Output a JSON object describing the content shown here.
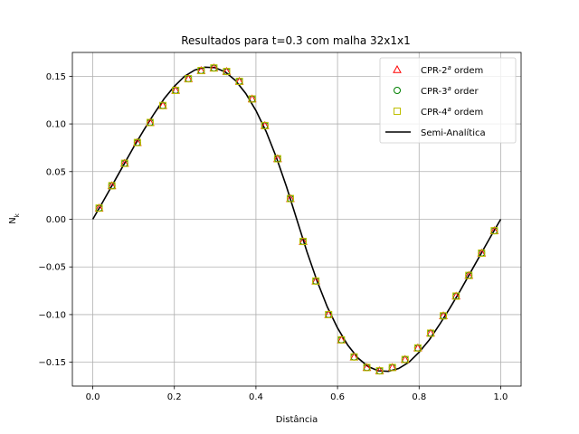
{
  "chart_data": {
    "type": "scatter",
    "title": "Resultados para t=0.3 com malha 32x1x1",
    "xlabel": "Distância",
    "ylabel": "N_k",
    "xlim": [
      -0.05,
      1.05
    ],
    "ylim": [
      -0.175,
      0.175
    ],
    "xticks": [
      0.0,
      0.2,
      0.4,
      0.6,
      0.8,
      1.0
    ],
    "xtick_labels": [
      "0.0",
      "0.2",
      "0.4",
      "0.6",
      "0.8",
      "1.0"
    ],
    "yticks": [
      -0.15,
      -0.1,
      -0.05,
      0.0,
      0.05,
      0.1,
      0.15
    ],
    "ytick_labels": [
      "−0.15",
      "−0.10",
      "−0.05",
      "0.00",
      "0.05",
      "0.10",
      "0.15"
    ],
    "grid": true,
    "legend_position": "top-right",
    "x": [
      0.015625,
      0.046875,
      0.078125,
      0.109375,
      0.140625,
      0.171875,
      0.203125,
      0.234375,
      0.265625,
      0.296875,
      0.328125,
      0.359375,
      0.390625,
      0.421875,
      0.453125,
      0.484375,
      0.515625,
      0.546875,
      0.578125,
      0.609375,
      0.640625,
      0.671875,
      0.703125,
      0.734375,
      0.765625,
      0.796875,
      0.828125,
      0.859375,
      0.890625,
      0.921875,
      0.953125,
      0.984375
    ],
    "series": [
      {
        "name": "CPR-2ª ordem",
        "marker": "triangle",
        "color": "#ff0000",
        "values": [
          0.0117,
          0.0352,
          0.0587,
          0.0805,
          0.1015,
          0.1193,
          0.1352,
          0.1474,
          0.156,
          0.1587,
          0.155,
          0.1447,
          0.1262,
          0.0983,
          0.0635,
          0.0217,
          -0.0233,
          -0.0648,
          -0.1,
          -0.1265,
          -0.1444,
          -0.1555,
          -0.159,
          -0.1555,
          -0.1471,
          -0.135,
          -0.1195,
          -0.1013,
          -0.0806,
          -0.0589,
          -0.0355,
          -0.012
        ]
      },
      {
        "name": "CPR-3ª order",
        "marker": "circle",
        "color": "#008000",
        "values": [
          0.0117,
          0.0352,
          0.0587,
          0.0805,
          0.1015,
          0.1193,
          0.1352,
          0.1474,
          0.156,
          0.1587,
          0.155,
          0.1447,
          0.1262,
          0.0983,
          0.0635,
          0.0217,
          -0.0233,
          -0.0648,
          -0.1,
          -0.1265,
          -0.1444,
          -0.1555,
          -0.159,
          -0.1555,
          -0.1471,
          -0.135,
          -0.1195,
          -0.1013,
          -0.0806,
          -0.0589,
          -0.0355,
          -0.012
        ]
      },
      {
        "name": "CPR-4ª ordem",
        "marker": "square",
        "color": "#bfbf00",
        "values": [
          0.0117,
          0.0352,
          0.0587,
          0.0805,
          0.1015,
          0.1193,
          0.1352,
          0.1474,
          0.156,
          0.1587,
          0.155,
          0.1447,
          0.1262,
          0.0983,
          0.0635,
          0.0217,
          -0.0233,
          -0.0648,
          -0.1,
          -0.1265,
          -0.1444,
          -0.1555,
          -0.159,
          -0.1555,
          -0.1471,
          -0.135,
          -0.1195,
          -0.1013,
          -0.0806,
          -0.0589,
          -0.0355,
          -0.012
        ]
      }
    ],
    "line_series": {
      "name": "Semi-Analítica",
      "color": "#000000",
      "x": [
        0.0,
        0.025,
        0.05,
        0.075,
        0.1,
        0.125,
        0.15,
        0.175,
        0.2,
        0.225,
        0.25,
        0.275,
        0.3,
        0.325,
        0.35,
        0.375,
        0.4,
        0.425,
        0.45,
        0.475,
        0.5,
        0.525,
        0.55,
        0.575,
        0.6,
        0.625,
        0.65,
        0.675,
        0.7,
        0.725,
        0.75,
        0.775,
        0.8,
        0.825,
        0.85,
        0.875,
        0.9,
        0.925,
        0.95,
        0.975,
        1.0
      ],
      "values": [
        0.0,
        0.0185,
        0.0375,
        0.0565,
        0.0755,
        0.0935,
        0.1105,
        0.1265,
        0.1395,
        0.15,
        0.1565,
        0.1595,
        0.159,
        0.1545,
        0.1455,
        0.132,
        0.114,
        0.092,
        0.065,
        0.034,
        0.0,
        -0.034,
        -0.065,
        -0.092,
        -0.114,
        -0.132,
        -0.1455,
        -0.1545,
        -0.159,
        -0.1595,
        -0.1565,
        -0.15,
        -0.1395,
        -0.1265,
        -0.1105,
        -0.0935,
        -0.0755,
        -0.0565,
        -0.0375,
        -0.0185,
        0.0
      ]
    }
  }
}
